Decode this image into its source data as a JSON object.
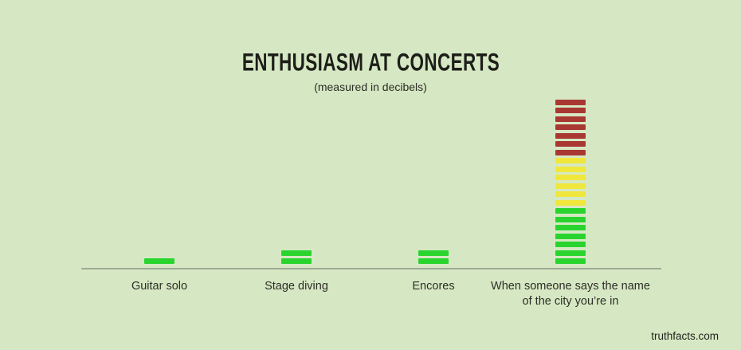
{
  "page": {
    "background_color": "#d6e8c3",
    "text_color": "#22231d"
  },
  "chart_data": {
    "type": "bar",
    "title": "ENTHUSIASM AT CONCERTS",
    "subtitle": "(measured in decibels)",
    "ylabel": "decibels",
    "xlabel": "",
    "legend": "none",
    "grid": false,
    "categories": [
      "Guitar solo",
      "Stage diving",
      "Encores",
      "When someone says the name of the city you’re in"
    ],
    "values": [
      1,
      2,
      2,
      20
    ],
    "ylim": [
      0,
      21
    ],
    "segment_colors": {
      "green": "#2ad42f",
      "yellow": "#f0e73c",
      "red": "#a93832"
    },
    "axis_color": "#9fa995",
    "bars": [
      {
        "label": "Guitar solo",
        "total_segments": 1,
        "segments": {
          "red": 0,
          "yellow": 0,
          "green": 1
        }
      },
      {
        "label": "Stage diving",
        "total_segments": 2,
        "segments": {
          "red": 0,
          "yellow": 0,
          "green": 2
        }
      },
      {
        "label": "Encores",
        "total_segments": 2,
        "segments": {
          "red": 0,
          "yellow": 0,
          "green": 2
        }
      },
      {
        "label": "When someone says the name\nof the city you’re in",
        "total_segments": 20,
        "segments": {
          "red": 7,
          "yellow": 6,
          "green": 7
        }
      }
    ]
  },
  "footer": {
    "source": "truthfacts.com"
  }
}
